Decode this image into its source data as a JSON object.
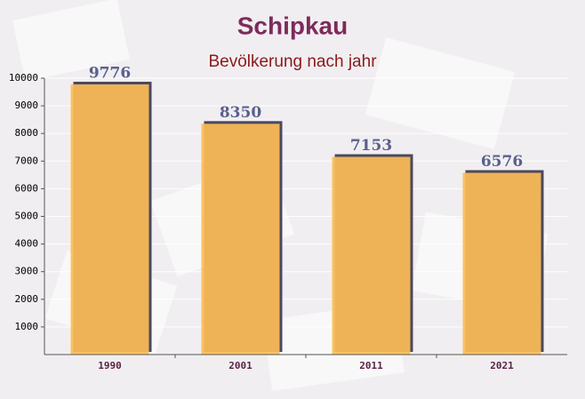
{
  "chart_data": {
    "type": "bar",
    "title": "Schipkau",
    "subtitle": "Bevölkerung nach jahr",
    "categories": [
      "1990",
      "2001",
      "2011",
      "2021"
    ],
    "values": [
      9776,
      8350,
      7153,
      6576
    ],
    "color": "#fbbd56",
    "ylim": [
      0,
      10000
    ],
    "yticks": [
      1000,
      2000,
      3000,
      4000,
      5000,
      6000,
      7000,
      8000,
      9000,
      10000
    ],
    "grid": true
  }
}
